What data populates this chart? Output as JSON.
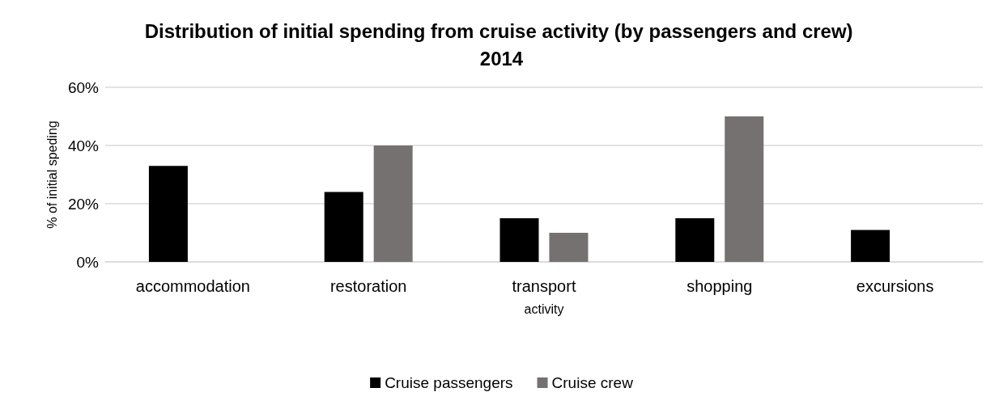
{
  "chart_data": {
    "type": "bar",
    "title": "Distribution of initial spending from cruise activity (by passengers and crew) 2014",
    "xlabel": "activity",
    "ylabel": "% of initial speding",
    "categories": [
      "accommodation",
      "restoration",
      "transport",
      "shopping",
      "excursions"
    ],
    "series": [
      {
        "name": "Cruise passengers",
        "color": "#000000",
        "values": [
          33,
          24,
          15,
          15,
          11
        ]
      },
      {
        "name": "Cruise crew",
        "color": "#767171",
        "values": [
          null,
          40,
          10,
          50,
          null
        ]
      }
    ],
    "ylim": [
      0,
      60
    ],
    "yticks": [
      {
        "value": 0,
        "label": "0%"
      },
      {
        "value": 20,
        "label": "20%"
      },
      {
        "value": 40,
        "label": "40%"
      },
      {
        "value": 60,
        "label": "60%"
      }
    ],
    "grid": "y",
    "legend": "bottom"
  }
}
